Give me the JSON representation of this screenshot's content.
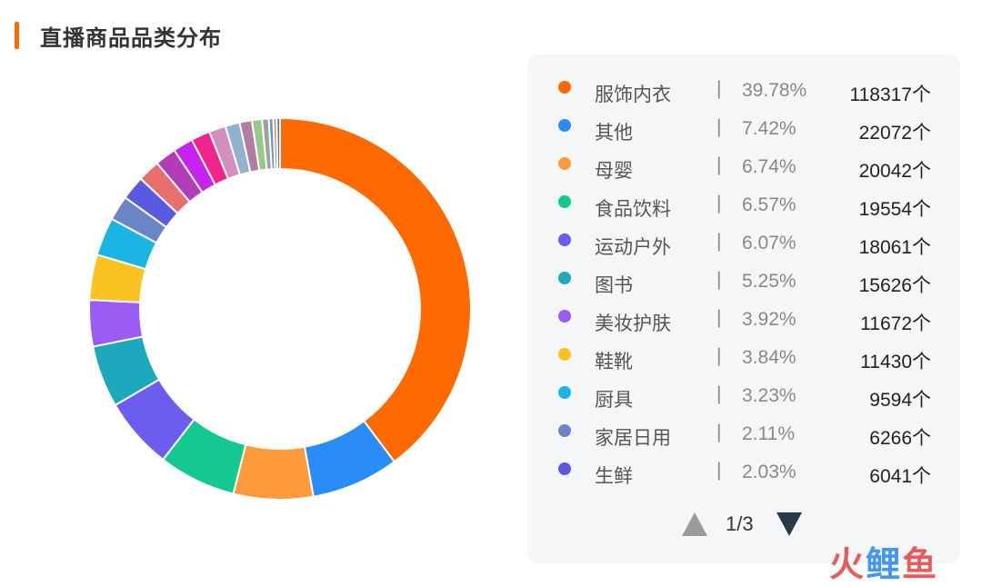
{
  "header": {
    "title": "直播商品品类分布"
  },
  "chart_data": {
    "type": "pie",
    "title": "直播商品品类分布",
    "donut": true,
    "legend_position": "right",
    "unit": "个",
    "categories": [
      "服饰内衣",
      "其他",
      "母婴",
      "食品饮料",
      "运动户外",
      "图书",
      "美妆护肤",
      "鞋靴",
      "厨具",
      "家居日用",
      "生鲜"
    ],
    "values": [
      118317,
      22072,
      20042,
      19554,
      18061,
      15626,
      11672,
      11430,
      9594,
      6266,
      6041
    ],
    "percentages": [
      "39.78%",
      "7.42%",
      "6.74%",
      "6.57%",
      "6.07%",
      "5.25%",
      "3.92%",
      "3.84%",
      "3.23%",
      "2.11%",
      "2.03%"
    ],
    "colors": [
      "#ff6a00",
      "#2a8cf7",
      "#ff9a3c",
      "#13c98f",
      "#6c5cf0",
      "#1ea8be",
      "#9a5cf5",
      "#fbc321",
      "#1ab5e3",
      "#6b84c8",
      "#5a5ae0"
    ],
    "other_slices_colors": [
      "#e96f6f",
      "#b33cb9",
      "#c623f0",
      "#f0248c",
      "#d38fbd",
      "#8fb3cf",
      "#b07ea0",
      "#98c98c",
      "#a0a0a0",
      "#5f9ad6",
      "#e07b3a",
      "#4a6fc0"
    ],
    "other_slices_percent": [
      2.0,
      1.9,
      1.8,
      1.7,
      1.5,
      1.3,
      1.1,
      0.9,
      0.6,
      0.4,
      0.3,
      0.3
    ]
  },
  "legend": {
    "separator": "|",
    "count_suffix": "个",
    "items": [
      {
        "name": "服饰内衣",
        "percent": "39.78%",
        "count": "118317个",
        "color": "#ff6a00"
      },
      {
        "name": "其他",
        "percent": "7.42%",
        "count": "22072个",
        "color": "#2a8cf7"
      },
      {
        "name": "母婴",
        "percent": "6.74%",
        "count": "20042个",
        "color": "#ff9a3c"
      },
      {
        "name": "食品饮料",
        "percent": "6.57%",
        "count": "19554个",
        "color": "#13c98f"
      },
      {
        "name": "运动户外",
        "percent": "6.07%",
        "count": "18061个",
        "color": "#6c5cf0"
      },
      {
        "name": "图书",
        "percent": "5.25%",
        "count": "15626个",
        "color": "#1ea8be"
      },
      {
        "name": "美妆护肤",
        "percent": "3.92%",
        "count": "11672个",
        "color": "#9a5cf5"
      },
      {
        "name": "鞋靴",
        "percent": "3.84%",
        "count": "11430个",
        "color": "#fbc321"
      },
      {
        "name": "厨具",
        "percent": "3.23%",
        "count": "9594个",
        "color": "#1ab5e3"
      },
      {
        "name": "家居日用",
        "percent": "2.11%",
        "count": "6266个",
        "color": "#6b84c8"
      },
      {
        "name": "生鲜",
        "percent": "2.03%",
        "count": "6041个",
        "color": "#5a5ae0"
      }
    ]
  },
  "pager": {
    "text": "1/3"
  },
  "watermark": {
    "part1": "火",
    "part2": "鲤",
    "part3": "鱼"
  }
}
